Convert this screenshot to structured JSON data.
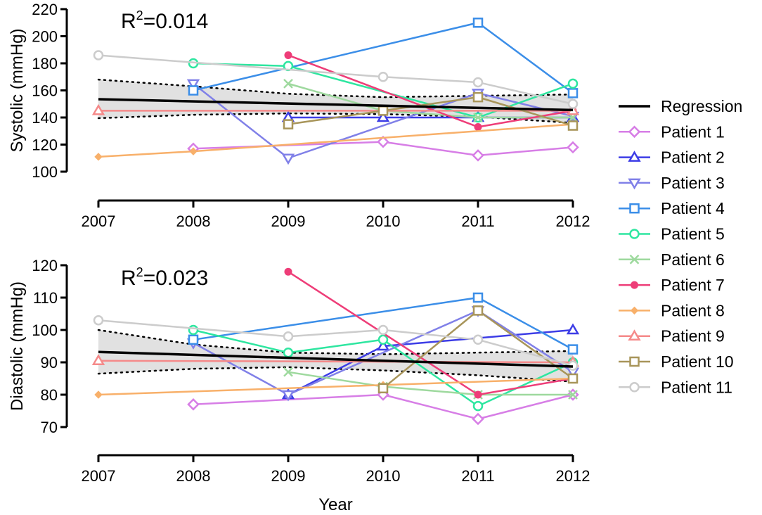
{
  "chart_data": [
    {
      "type": "line",
      "panel": "systolic",
      "ylabel": "Systolic (mmHg)",
      "xlabel": "",
      "ylim": [
        100,
        220
      ],
      "yticks": [
        100,
        120,
        140,
        160,
        180,
        200,
        220
      ],
      "xlim": [
        2007,
        2012
      ],
      "x": [
        2007,
        2008,
        2009,
        2010,
        2011,
        2012
      ],
      "annotation": {
        "prefix": "R",
        "sup": "2",
        "suffix": "=0.014"
      },
      "regression": {
        "start": 153.5,
        "end": 145.5
      },
      "ci_upper": [
        168,
        163,
        157.5,
        155,
        156,
        157
      ],
      "ci_lower": [
        139.5,
        142,
        143,
        142.5,
        140.5,
        136
      ],
      "series": [
        {
          "name": "Patient 1",
          "color": "#d77ee6",
          "marker": "diamond",
          "values": [
            null,
            117,
            null,
            122,
            112,
            118
          ]
        },
        {
          "name": "Patient 2",
          "color": "#3d3de6",
          "marker": "triangle-up",
          "values": [
            null,
            null,
            140,
            140,
            140,
            140
          ]
        },
        {
          "name": "Patient 3",
          "color": "#8080e8",
          "marker": "triangle-down",
          "values": [
            null,
            165,
            110,
            null,
            158,
            141
          ]
        },
        {
          "name": "Patient 4",
          "color": "#3b8ee8",
          "marker": "square",
          "values": [
            null,
            160,
            null,
            null,
            210,
            158
          ]
        },
        {
          "name": "Patient 5",
          "color": "#2ee6a0",
          "marker": "circle",
          "values": [
            null,
            180,
            178,
            null,
            140,
            165
          ]
        },
        {
          "name": "Patient 6",
          "color": "#9ed99e",
          "marker": "x",
          "values": [
            null,
            null,
            165,
            145,
            140,
            140
          ]
        },
        {
          "name": "Patient 7",
          "color": "#ee3d78",
          "marker": "hexagon",
          "values": [
            null,
            null,
            186,
            null,
            133,
            145
          ]
        },
        {
          "name": "Patient 8",
          "color": "#f8b06a",
          "marker": "small-diamond",
          "values": [
            111,
            115,
            null,
            null,
            null,
            135
          ]
        },
        {
          "name": "Patient 9",
          "color": "#f58a8a",
          "marker": "triangle-up",
          "values": [
            145,
            null,
            null,
            null,
            null,
            145
          ]
        },
        {
          "name": "Patient 10",
          "color": "#a8955a",
          "marker": "square",
          "values": [
            null,
            null,
            135,
            145,
            155,
            134
          ]
        },
        {
          "name": "Patient 11",
          "color": "#cccccc",
          "marker": "circle",
          "values": [
            186,
            null,
            null,
            170,
            166,
            150
          ]
        }
      ]
    },
    {
      "type": "line",
      "panel": "diastolic",
      "ylabel": "Diastolic (mmHg)",
      "xlabel": "Year",
      "ylim": [
        70,
        120
      ],
      "yticks": [
        70,
        80,
        90,
        100,
        110,
        120
      ],
      "xlim": [
        2007,
        2012
      ],
      "x": [
        2007,
        2008,
        2009,
        2010,
        2011,
        2012
      ],
      "annotation": {
        "prefix": "R",
        "sup": "2",
        "suffix": "=0.023"
      },
      "regression": {
        "start": 93.2,
        "end": 88.7
      },
      "ci_upper": [
        100,
        95.5,
        93,
        92.5,
        93,
        93.5
      ],
      "ci_lower": [
        86.5,
        88,
        88.5,
        87.5,
        86,
        84
      ],
      "series": [
        {
          "name": "Patient 1",
          "color": "#d77ee6",
          "marker": "diamond",
          "values": [
            null,
            77,
            null,
            80,
            72.5,
            80
          ]
        },
        {
          "name": "Patient 2",
          "color": "#3d3de6",
          "marker": "triangle-up",
          "values": [
            null,
            null,
            80,
            95,
            null,
            100
          ]
        },
        {
          "name": "Patient 3",
          "color": "#8080e8",
          "marker": "triangle-down",
          "values": [
            null,
            96,
            80,
            null,
            106,
            87
          ]
        },
        {
          "name": "Patient 4",
          "color": "#3b8ee8",
          "marker": "square",
          "values": [
            null,
            97,
            null,
            null,
            110,
            94
          ]
        },
        {
          "name": "Patient 5",
          "color": "#2ee6a0",
          "marker": "circle",
          "values": [
            null,
            100,
            93,
            97,
            76.5,
            90
          ]
        },
        {
          "name": "Patient 6",
          "color": "#9ed99e",
          "marker": "x",
          "values": [
            null,
            null,
            87,
            82.5,
            80,
            80
          ]
        },
        {
          "name": "Patient 7",
          "color": "#ee3d78",
          "marker": "hexagon",
          "values": [
            null,
            null,
            118,
            null,
            80,
            85
          ]
        },
        {
          "name": "Patient 8",
          "color": "#f8b06a",
          "marker": "small-diamond",
          "values": [
            80,
            null,
            null,
            83,
            null,
            85
          ]
        },
        {
          "name": "Patient 9",
          "color": "#f58a8a",
          "marker": "triangle-up",
          "values": [
            90.5,
            null,
            null,
            null,
            null,
            90
          ]
        },
        {
          "name": "Patient 10",
          "color": "#a8955a",
          "marker": "square",
          "values": [
            null,
            null,
            null,
            82,
            106,
            85
          ]
        },
        {
          "name": "Patient 11",
          "color": "#cccccc",
          "marker": "circle",
          "values": [
            103,
            null,
            98,
            100,
            97,
            89
          ]
        }
      ]
    }
  ],
  "legend": {
    "position": "right",
    "items": [
      {
        "name": "Regression",
        "color": "#000000",
        "marker": "none"
      },
      {
        "name": "Patient 1",
        "color": "#d77ee6",
        "marker": "diamond"
      },
      {
        "name": "Patient 2",
        "color": "#3d3de6",
        "marker": "triangle-up"
      },
      {
        "name": "Patient 3",
        "color": "#8080e8",
        "marker": "triangle-down"
      },
      {
        "name": "Patient 4",
        "color": "#3b8ee8",
        "marker": "square"
      },
      {
        "name": "Patient 5",
        "color": "#2ee6a0",
        "marker": "circle"
      },
      {
        "name": "Patient 6",
        "color": "#9ed99e",
        "marker": "x"
      },
      {
        "name": "Patient 7",
        "color": "#ee3d78",
        "marker": "hexagon"
      },
      {
        "name": "Patient 8",
        "color": "#f8b06a",
        "marker": "small-diamond"
      },
      {
        "name": "Patient 9",
        "color": "#f58a8a",
        "marker": "triangle-up"
      },
      {
        "name": "Patient 10",
        "color": "#a8955a",
        "marker": "square"
      },
      {
        "name": "Patient 11",
        "color": "#cccccc",
        "marker": "circle"
      }
    ]
  }
}
